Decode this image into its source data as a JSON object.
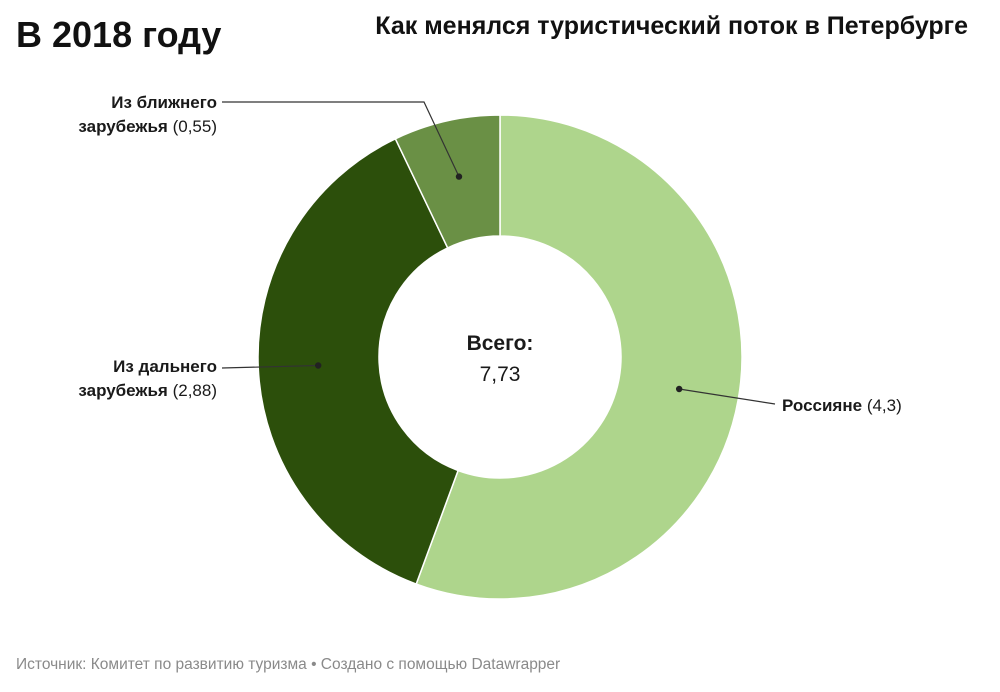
{
  "header": {
    "subtitle": "В 2018 году",
    "title": "Как менялся туристический поток в Петербурге"
  },
  "chart_data": {
    "type": "pie",
    "title": "Как менялся туристический поток в Петербурге",
    "subtitle": "В 2018 году",
    "center_title": "Всего:",
    "center_value": "7,73",
    "slices": [
      {
        "name": "Россияне",
        "value": 4.3,
        "label_value": "(4,3)",
        "color": "#aed58c"
      },
      {
        "name": "Из дальнего зарубежья",
        "name_lines": [
          "Из дальнего",
          "зарубежья"
        ],
        "value": 2.88,
        "label_value": "(2,88)",
        "color": "#2c4f0b"
      },
      {
        "name": "Из ближнего зарубежья",
        "name_lines": [
          "Из ближнего",
          "зарубежья"
        ],
        "value": 0.55,
        "label_value": "(0,55)",
        "color": "#6a9045"
      }
    ]
  },
  "footer": {
    "text": "Источник: Комитет по развитию туризма • Создано с помощью Datawrapper"
  }
}
